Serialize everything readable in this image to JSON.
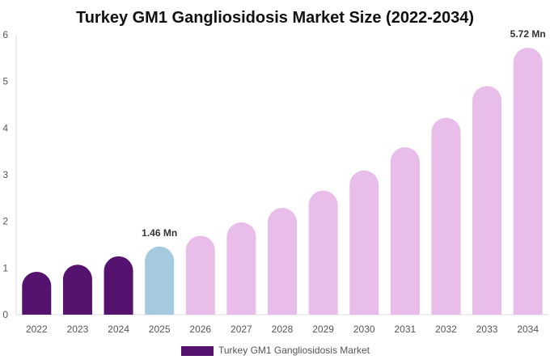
{
  "chart_data": {
    "type": "bar",
    "title": "Turkey GM1 Gangliosidosis Market Size (2022-2034)",
    "categories": [
      "2022",
      "2023",
      "2024",
      "2025",
      "2026",
      "2027",
      "2028",
      "2029",
      "2030",
      "2031",
      "2032",
      "2033",
      "2034"
    ],
    "series": [
      {
        "name": "Turkey GM1 Gangliosidosis Market",
        "values": [
          0.92,
          1.07,
          1.25,
          1.46,
          1.69,
          1.98,
          2.29,
          2.66,
          3.09,
          3.59,
          4.22,
          4.9,
          5.72
        ]
      }
    ],
    "bar_colors": [
      "#55126f",
      "#55126f",
      "#55126f",
      "#a5cadf",
      "#e8bde9",
      "#e8bde9",
      "#e8bde9",
      "#e8bde9",
      "#e8bde9",
      "#e8bde9",
      "#e8bde9",
      "#e8bde9",
      "#e8bde9"
    ],
    "data_labels": [
      {
        "index": 3,
        "text": "1.46 Mn"
      },
      {
        "index": 12,
        "text": "5.72 Mn"
      }
    ],
    "ylim": [
      0,
      6
    ],
    "yticks": [
      "0",
      "1",
      "2",
      "3",
      "4",
      "5",
      "6"
    ],
    "grid": false,
    "legend": {
      "position": "bottom-center",
      "label": "Turkey GM1 Gangliosidosis Market",
      "color": "#55126f"
    },
    "xlabel": "",
    "ylabel": ""
  }
}
